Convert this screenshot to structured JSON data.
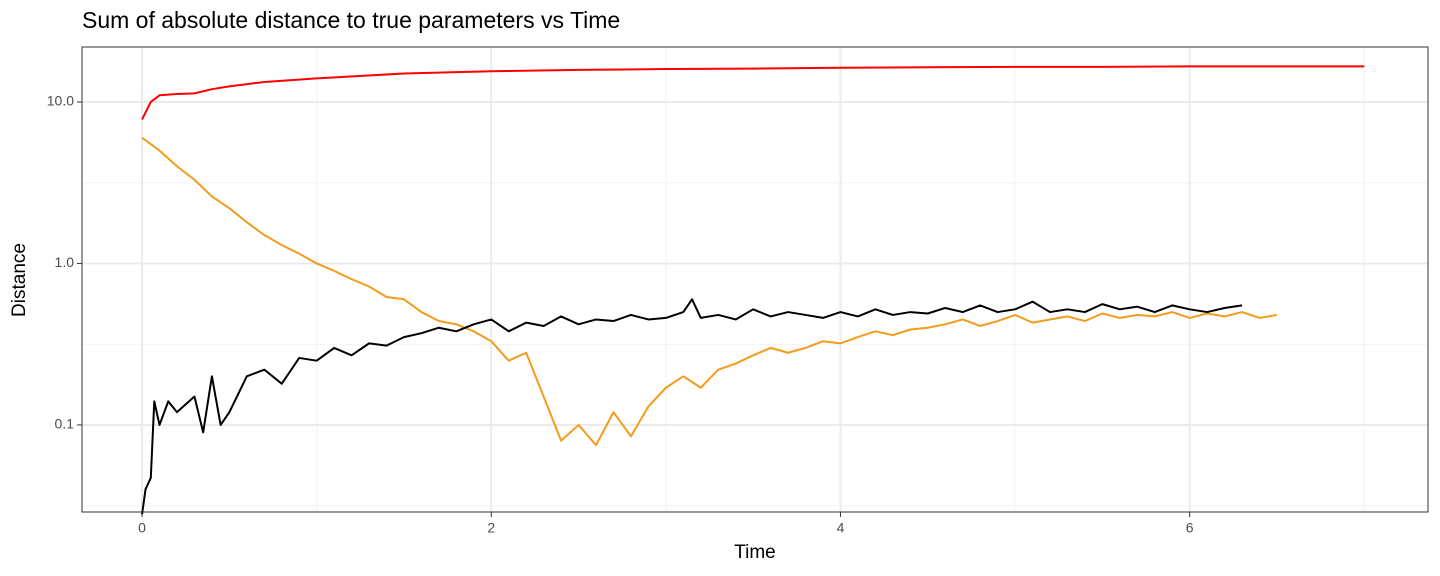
{
  "chart_data": {
    "type": "line",
    "title": "Sum of absolute distance to true parameters vs Time",
    "x_label": "Time",
    "y_label": "Distance",
    "log_y": true,
    "grid": true,
    "xlim": [
      -0.344,
      7.365
    ],
    "xticks": [
      0,
      2,
      4,
      6
    ],
    "ylim": [
      0.0289,
      21.9
    ],
    "yticks": [
      0.1,
      {
        "value": 1,
        "label": "1.0"
      },
      {
        "value": 10,
        "label": "10.0"
      }
    ],
    "series": [
      {
        "color": "#ff0000",
        "x": [
          0,
          0.05,
          0.1,
          0.2,
          0.3,
          0.4,
          0.5,
          0.7,
          1,
          1.5,
          2,
          2.5,
          3,
          3.5,
          4,
          4.5,
          5,
          5.5,
          6,
          6.5,
          7
        ],
        "values": [
          7.8,
          10,
          11,
          11.2,
          11.3,
          12,
          12.5,
          13.3,
          14,
          15,
          15.5,
          15.8,
          16,
          16.1,
          16.3,
          16.4,
          16.5,
          16.5,
          16.6,
          16.6,
          16.6
        ]
      },
      {
        "color": "#f39c1b",
        "x": [
          0,
          0.1,
          0.2,
          0.3,
          0.4,
          0.5,
          0.6,
          0.7,
          0.8,
          0.9,
          1,
          1.1,
          1.2,
          1.3,
          1.4,
          1.5,
          1.6,
          1.7,
          1.8,
          1.9,
          2,
          2.1,
          2.2,
          2.3,
          2.4,
          2.5,
          2.6,
          2.7,
          2.8,
          2.9,
          3,
          3.1,
          3.2,
          3.3,
          3.4,
          3.5,
          3.6,
          3.7,
          3.8,
          3.9,
          4,
          4.1,
          4.2,
          4.3,
          4.4,
          4.5,
          4.6,
          4.7,
          4.8,
          4.9,
          5,
          5.1,
          5.2,
          5.3,
          5.4,
          5.5,
          5.6,
          5.7,
          5.8,
          5.9,
          6,
          6.1,
          6.2,
          6.3,
          6.4,
          6.5
        ],
        "values": [
          6,
          5,
          4,
          3.3,
          2.6,
          2.2,
          1.8,
          1.5,
          1.3,
          1.15,
          1,
          0.9,
          0.8,
          0.72,
          0.62,
          0.6,
          0.5,
          0.44,
          0.42,
          0.38,
          0.33,
          0.25,
          0.28,
          0.15,
          0.08,
          0.1,
          0.075,
          0.12,
          0.085,
          0.13,
          0.17,
          0.2,
          0.17,
          0.22,
          0.24,
          0.27,
          0.3,
          0.28,
          0.3,
          0.33,
          0.32,
          0.35,
          0.38,
          0.36,
          0.39,
          0.4,
          0.42,
          0.45,
          0.41,
          0.44,
          0.48,
          0.43,
          0.45,
          0.47,
          0.44,
          0.49,
          0.46,
          0.48,
          0.47,
          0.5,
          0.46,
          0.49,
          0.47,
          0.5,
          0.46,
          0.48
        ]
      },
      {
        "color": "#000000",
        "x": [
          0,
          0.02,
          0.05,
          0.07,
          0.1,
          0.15,
          0.2,
          0.3,
          0.35,
          0.4,
          0.45,
          0.5,
          0.6,
          0.7,
          0.8,
          0.9,
          1,
          1.1,
          1.2,
          1.3,
          1.4,
          1.5,
          1.6,
          1.7,
          1.8,
          1.9,
          2,
          2.1,
          2.2,
          2.3,
          2.4,
          2.5,
          2.6,
          2.7,
          2.8,
          2.9,
          3,
          3.1,
          3.15,
          3.2,
          3.3,
          3.4,
          3.5,
          3.6,
          3.7,
          3.8,
          3.9,
          4,
          4.1,
          4.2,
          4.3,
          4.4,
          4.5,
          4.6,
          4.7,
          4.8,
          4.9,
          5,
          5.1,
          5.2,
          5.3,
          5.4,
          5.5,
          5.6,
          5.7,
          5.8,
          5.9,
          6,
          6.1,
          6.2,
          6.3
        ],
        "values": [
          0.028,
          0.04,
          0.047,
          0.14,
          0.1,
          0.14,
          0.12,
          0.15,
          0.09,
          0.2,
          0.1,
          0.12,
          0.2,
          0.22,
          0.18,
          0.26,
          0.25,
          0.3,
          0.27,
          0.32,
          0.31,
          0.35,
          0.37,
          0.4,
          0.38,
          0.42,
          0.45,
          0.38,
          0.43,
          0.41,
          0.47,
          0.42,
          0.45,
          0.44,
          0.48,
          0.45,
          0.46,
          0.5,
          0.6,
          0.46,
          0.48,
          0.45,
          0.52,
          0.47,
          0.5,
          0.48,
          0.46,
          0.5,
          0.47,
          0.52,
          0.48,
          0.5,
          0.49,
          0.53,
          0.5,
          0.55,
          0.5,
          0.52,
          0.58,
          0.5,
          0.52,
          0.5,
          0.56,
          0.52,
          0.54,
          0.5,
          0.55,
          0.52,
          0.5,
          0.53,
          0.55
        ]
      }
    ]
  }
}
